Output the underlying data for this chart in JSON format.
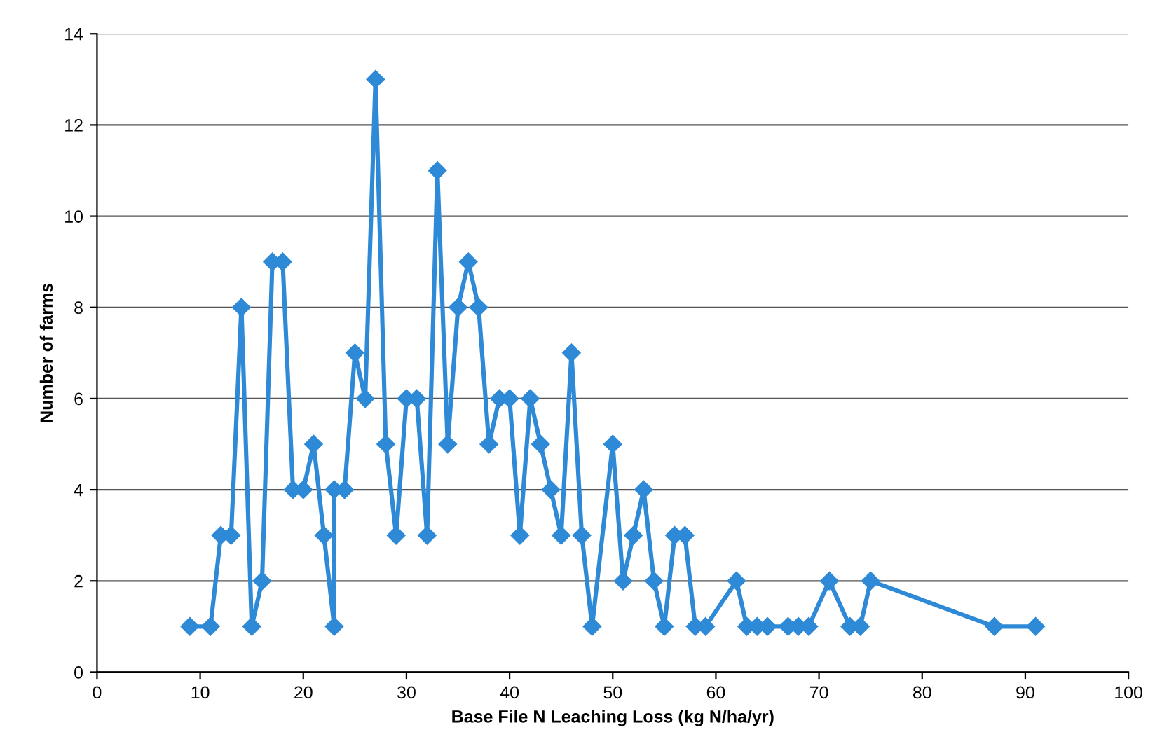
{
  "chart_data": {
    "type": "line",
    "xlabel": "Base File N Leaching Loss (kg N/ha/yr)",
    "ylabel": "Number of farms",
    "x": [
      9,
      11,
      12,
      13,
      14,
      15,
      16,
      17,
      18,
      19,
      20,
      21,
      22,
      23,
      23,
      24,
      25,
      26,
      27,
      28,
      29,
      30,
      31,
      32,
      33,
      34,
      35,
      36,
      37,
      38,
      39,
      40,
      41,
      42,
      43,
      44,
      45,
      46,
      47,
      48,
      50,
      51,
      52,
      53,
      54,
      55,
      56,
      57,
      58,
      59,
      62,
      63,
      64,
      65,
      67,
      68,
      69,
      71,
      73,
      74,
      75,
      87,
      91
    ],
    "values": [
      1,
      1,
      3,
      3,
      8,
      1,
      2,
      9,
      9,
      4,
      4,
      5,
      3,
      1,
      4,
      4,
      7,
      6,
      13,
      5,
      3,
      6,
      6,
      3,
      11,
      5,
      8,
      9,
      8,
      5,
      6,
      6,
      3,
      6,
      5,
      4,
      3,
      7,
      3,
      1,
      5,
      2,
      3,
      4,
      2,
      1,
      3,
      3,
      1,
      1,
      2,
      1,
      1,
      1,
      1,
      1,
      1,
      2,
      1,
      1,
      2,
      1,
      1
    ],
    "color": "#2e8ad6",
    "marker": "diamond",
    "line_style": "solid",
    "grid": "y",
    "xlim": [
      0,
      100
    ],
    "xticks": [
      0,
      10,
      20,
      30,
      40,
      50,
      60,
      70,
      80,
      90,
      100
    ],
    "ylim": [
      0,
      14
    ],
    "yticks": [
      0,
      2,
      4,
      6,
      8,
      10,
      12,
      14
    ]
  }
}
